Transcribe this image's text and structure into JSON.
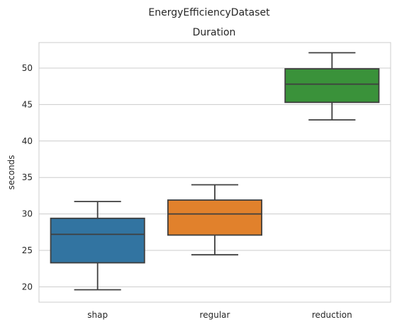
{
  "figure": {
    "suptitle": "EnergyEfficiencyDataset"
  },
  "chart_data": {
    "type": "box",
    "title": "Duration",
    "xlabel": "",
    "ylabel": "seconds",
    "categories": [
      "shap",
      "regular",
      "reduction"
    ],
    "ylim": [
      17.9,
      53.5
    ],
    "yticks": [
      20,
      25,
      30,
      35,
      40,
      45,
      50
    ],
    "grid": true,
    "boxes": [
      {
        "category": "shap",
        "whislo": 19.6,
        "q1": 23.3,
        "med": 27.2,
        "q3": 29.4,
        "whishi": 31.7,
        "color": "#3274a1"
      },
      {
        "category": "regular",
        "whislo": 24.4,
        "q1": 27.1,
        "med": 30.0,
        "q3": 31.9,
        "whishi": 34.0,
        "color": "#e1812c"
      },
      {
        "category": "reduction",
        "whislo": 42.9,
        "q1": 45.3,
        "med": 47.8,
        "q3": 49.9,
        "whishi": 52.1,
        "color": "#3a923a"
      }
    ]
  }
}
